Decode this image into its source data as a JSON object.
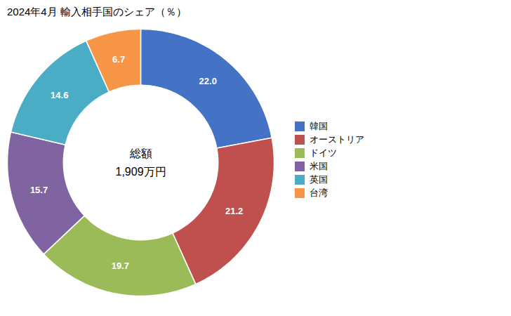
{
  "chart_data": {
    "type": "donut",
    "title": "2024年4月 輸入相手国のシェア（％）",
    "annotations": [
      "総額",
      "1,909万円"
    ],
    "categories": [
      "韓国",
      "オーストリア",
      "ドイツ",
      "米国",
      "英国",
      "台湾"
    ],
    "values": [
      22.0,
      21.2,
      19.7,
      15.7,
      14.6,
      6.7
    ],
    "value_labels": [
      "22.0",
      "21.2",
      "19.7",
      "15.7",
      "14.6",
      "6.7"
    ],
    "colors": [
      "#4472C4",
      "#C0504D",
      "#9BBB59",
      "#8064A2",
      "#4BACC6",
      "#F79646"
    ],
    "data_labels": true,
    "legend": "right"
  }
}
